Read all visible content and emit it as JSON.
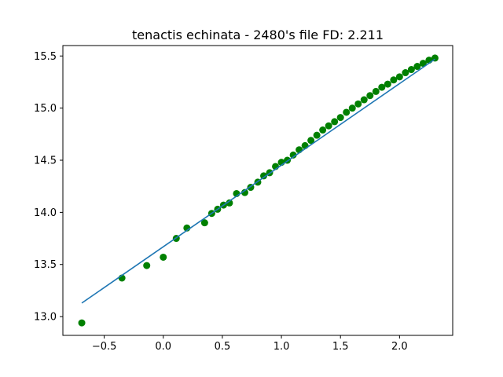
{
  "chart_data": {
    "type": "scatter",
    "title": "tenactis echinata - 2480's file FD: 2.211",
    "xlabel": "",
    "ylabel": "",
    "xlim": [
      -0.85,
      2.45
    ],
    "ylim": [
      12.82,
      15.6
    ],
    "x_ticks": [
      -0.5,
      0.0,
      0.5,
      1.0,
      1.5,
      2.0
    ],
    "x_tick_labels": [
      "−0.5",
      "0.0",
      "0.5",
      "1.0",
      "1.5",
      "2.0"
    ],
    "y_ticks": [
      13.0,
      13.5,
      14.0,
      14.5,
      15.0,
      15.5
    ],
    "y_tick_labels": [
      "13.0",
      "13.5",
      "14.0",
      "14.5",
      "15.0",
      "15.5"
    ],
    "grid": false,
    "series": [
      {
        "kind": "scatter",
        "color": "#008000",
        "points": [
          [
            -0.69,
            12.94
          ],
          [
            -0.35,
            13.37
          ],
          [
            -0.14,
            13.49
          ],
          [
            0.0,
            13.57
          ],
          [
            0.11,
            13.75
          ],
          [
            0.2,
            13.85
          ],
          [
            0.35,
            13.9
          ],
          [
            0.41,
            13.99
          ],
          [
            0.46,
            14.03
          ],
          [
            0.51,
            14.07
          ],
          [
            0.56,
            14.09
          ],
          [
            0.62,
            14.18
          ],
          [
            0.69,
            14.19
          ],
          [
            0.74,
            14.24
          ],
          [
            0.8,
            14.29
          ],
          [
            0.85,
            14.35
          ],
          [
            0.9,
            14.38
          ],
          [
            0.95,
            14.44
          ],
          [
            1.0,
            14.48
          ],
          [
            1.05,
            14.5
          ],
          [
            1.1,
            14.55
          ],
          [
            1.15,
            14.6
          ],
          [
            1.2,
            14.64
          ],
          [
            1.25,
            14.69
          ],
          [
            1.3,
            14.74
          ],
          [
            1.35,
            14.79
          ],
          [
            1.4,
            14.83
          ],
          [
            1.45,
            14.87
          ],
          [
            1.5,
            14.91
          ],
          [
            1.55,
            14.96
          ],
          [
            1.6,
            15.0
          ],
          [
            1.65,
            15.04
          ],
          [
            1.7,
            15.08
          ],
          [
            1.75,
            15.12
          ],
          [
            1.8,
            15.16
          ],
          [
            1.85,
            15.2
          ],
          [
            1.9,
            15.23
          ],
          [
            1.95,
            15.27
          ],
          [
            2.0,
            15.3
          ],
          [
            2.05,
            15.34
          ],
          [
            2.1,
            15.37
          ],
          [
            2.15,
            15.4
          ],
          [
            2.2,
            15.43
          ],
          [
            2.25,
            15.46
          ],
          [
            2.3,
            15.48
          ]
        ]
      },
      {
        "kind": "line",
        "color": "#1f77b4",
        "points": [
          [
            -0.69,
            13.13
          ],
          [
            2.3,
            15.47
          ]
        ]
      }
    ]
  }
}
